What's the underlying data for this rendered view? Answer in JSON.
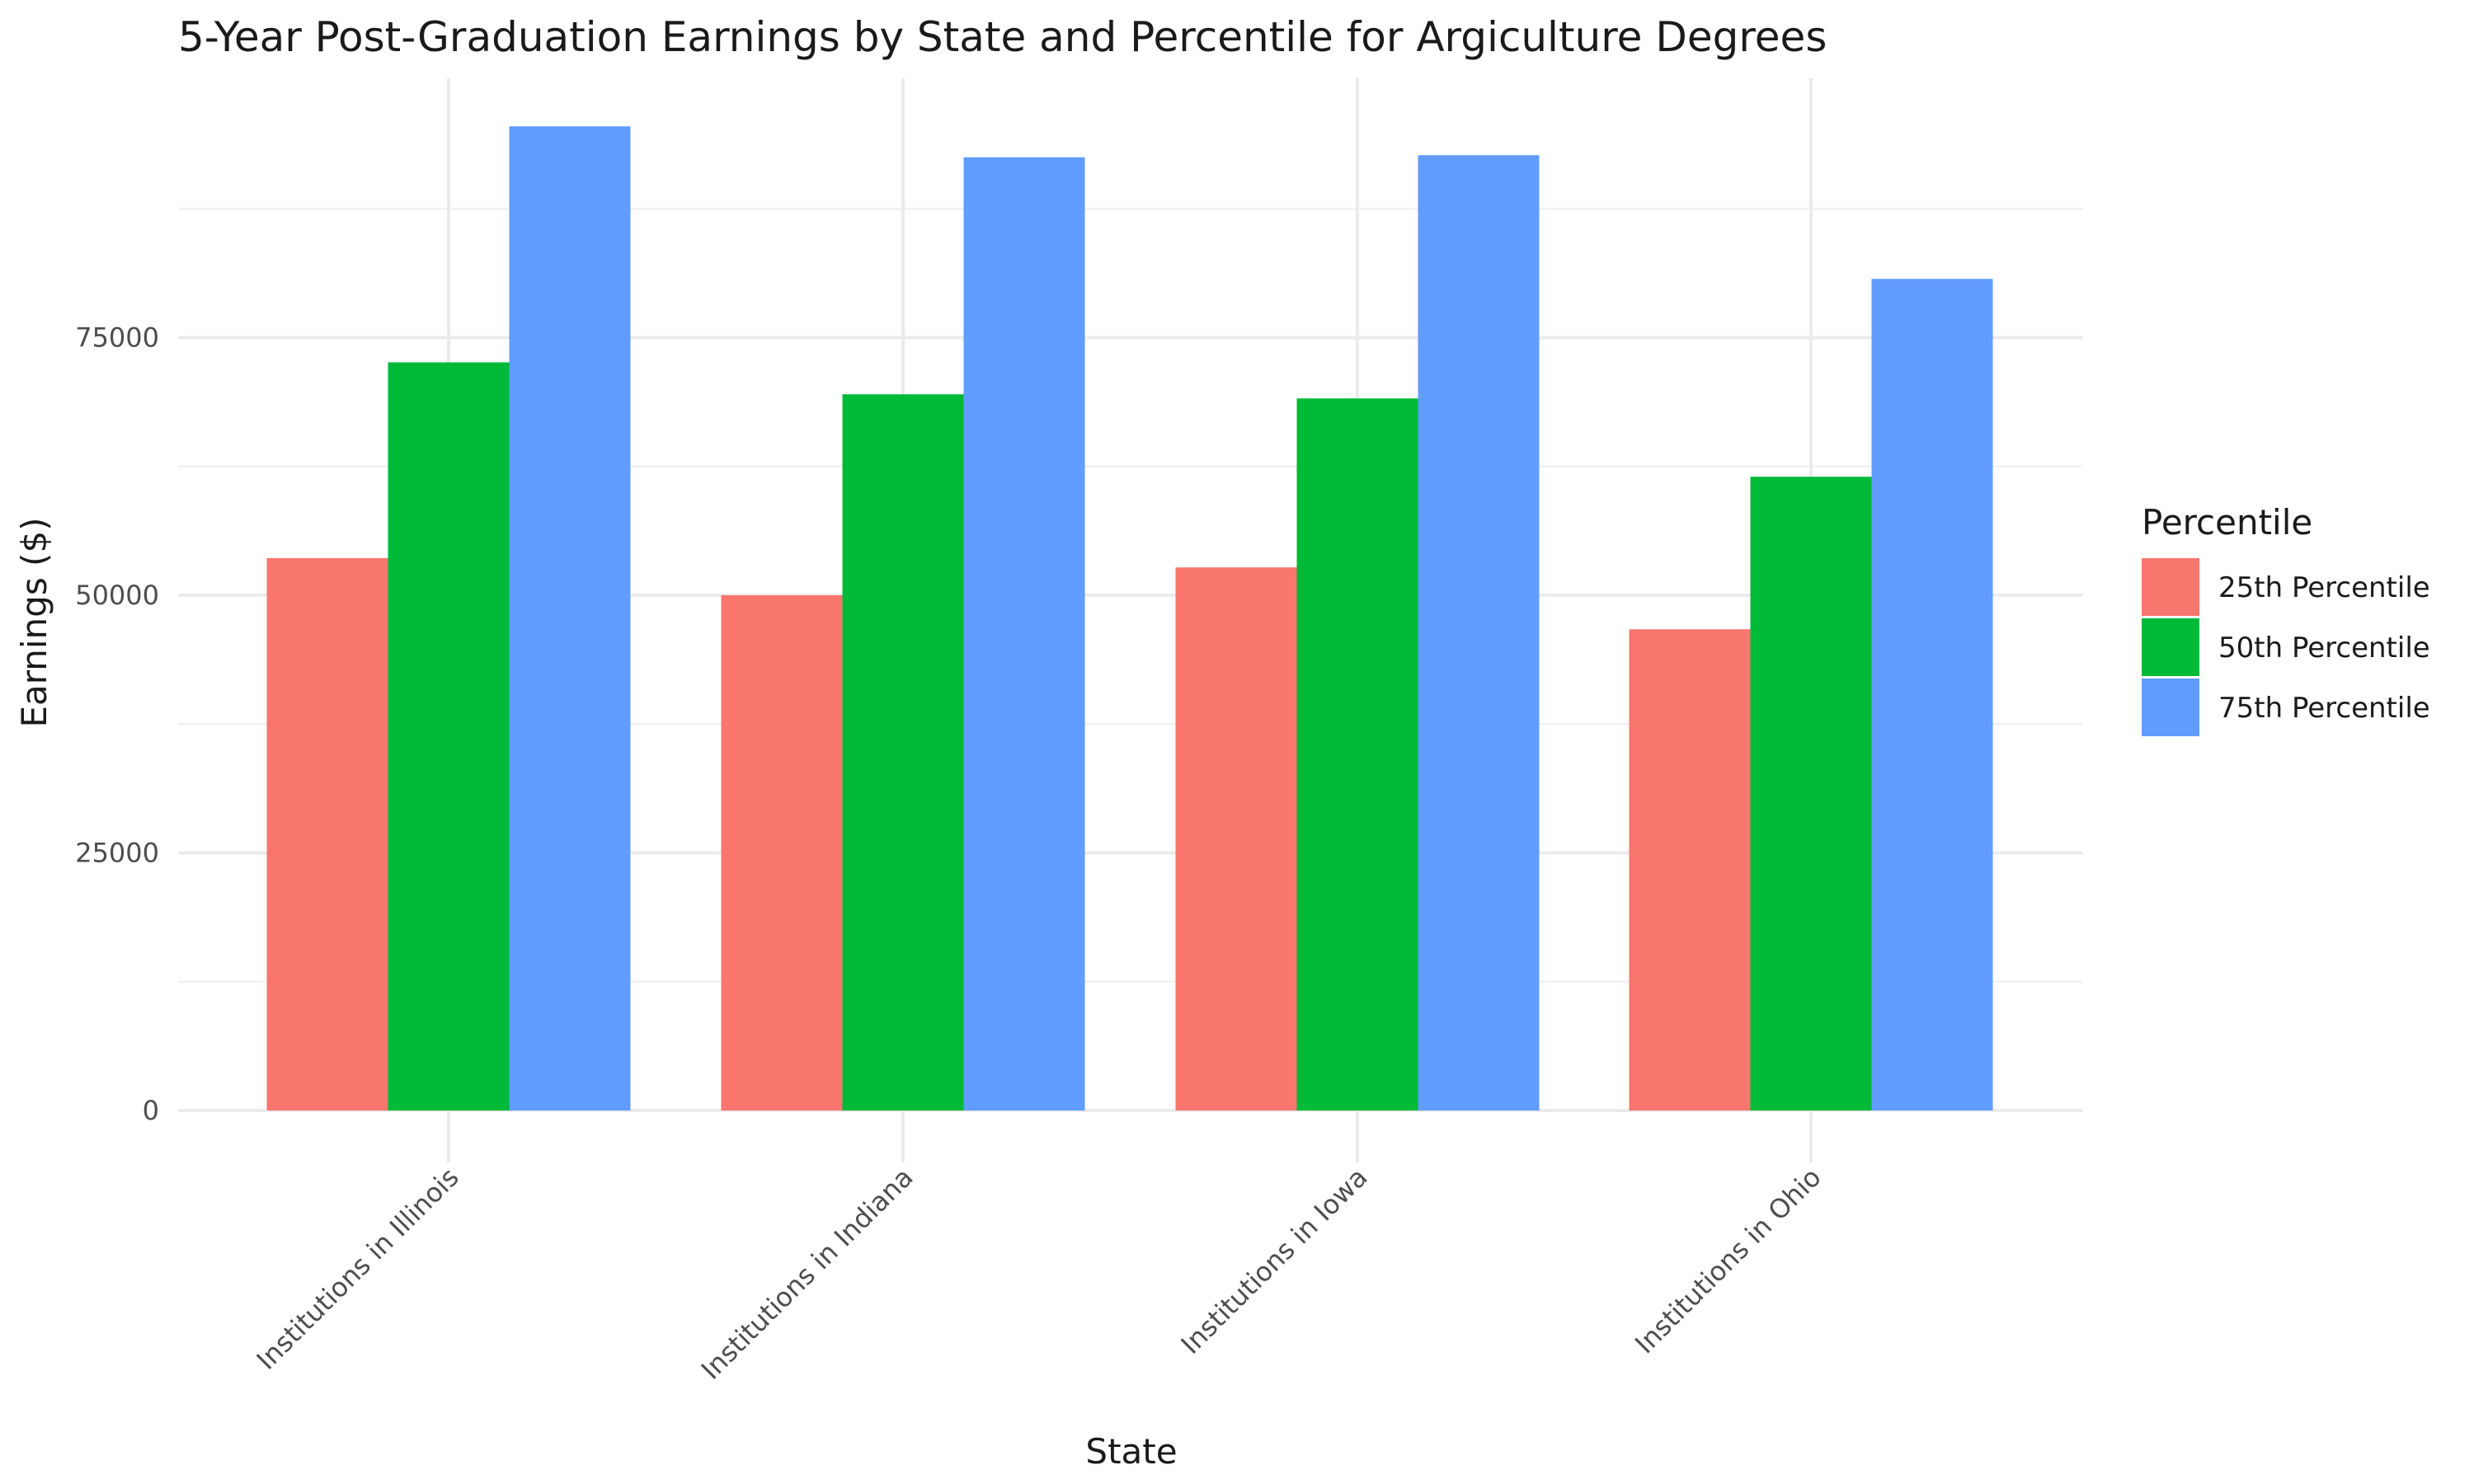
{
  "chart_data": {
    "type": "bar",
    "title": "5-Year Post-Graduation Earnings by State and Percentile for Argiculture Degrees",
    "xlabel": "State",
    "ylabel": "Earnings ($)",
    "categories": [
      "Institutions in Illinois",
      "Institutions in Indiana",
      "Institutions in Iowa",
      "Institutions in Ohio"
    ],
    "series": [
      {
        "name": "25th Percentile",
        "values": [
          53600,
          50000,
          52700,
          46700
        ],
        "color": "#F8766D"
      },
      {
        "name": "50th Percentile",
        "values": [
          72600,
          69500,
          69100,
          61500
        ],
        "color": "#00BA38"
      },
      {
        "name": "75th Percentile",
        "values": [
          95500,
          92500,
          92700,
          80700
        ],
        "color": "#619CFF"
      }
    ],
    "ylim": [
      0,
      100000
    ],
    "yticks": [
      "0",
      "25000",
      "50000",
      "75000"
    ],
    "grid": true,
    "legend": {
      "title": "Percentile",
      "placement": "right"
    }
  }
}
